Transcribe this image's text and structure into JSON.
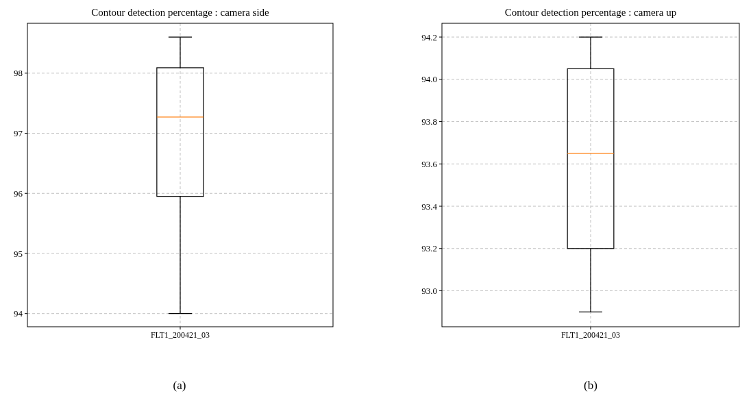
{
  "chart_data": [
    {
      "type": "box",
      "title": "Contour detection percentage : camera side",
      "categories": [
        "FLT1_200421_03"
      ],
      "boxes": [
        {
          "low": 94.0,
          "q1": 95.95,
          "median": 97.27,
          "q3": 98.09,
          "high": 98.6
        }
      ],
      "ylim": [
        93.78,
        98.83
      ],
      "yticks": [
        94,
        95,
        96,
        97,
        98
      ],
      "grid": true,
      "annotations": [
        "(a)"
      ]
    },
    {
      "type": "box",
      "title": "Contour detection percentage : camera up",
      "categories": [
        "FLT1_200421_03"
      ],
      "boxes": [
        {
          "low": 92.9,
          "q1": 93.2,
          "median": 93.65,
          "q3": 94.05,
          "high": 94.2
        }
      ],
      "ylim": [
        92.83,
        94.265
      ],
      "yticks": [
        {
          "value": 93.0,
          "label": "93.0"
        },
        93.2,
        93.4,
        93.6,
        93.8,
        {
          "value": 94.0,
          "label": "94.0"
        },
        94.2
      ],
      "grid": true,
      "annotations": [
        "(b)"
      ]
    }
  ]
}
